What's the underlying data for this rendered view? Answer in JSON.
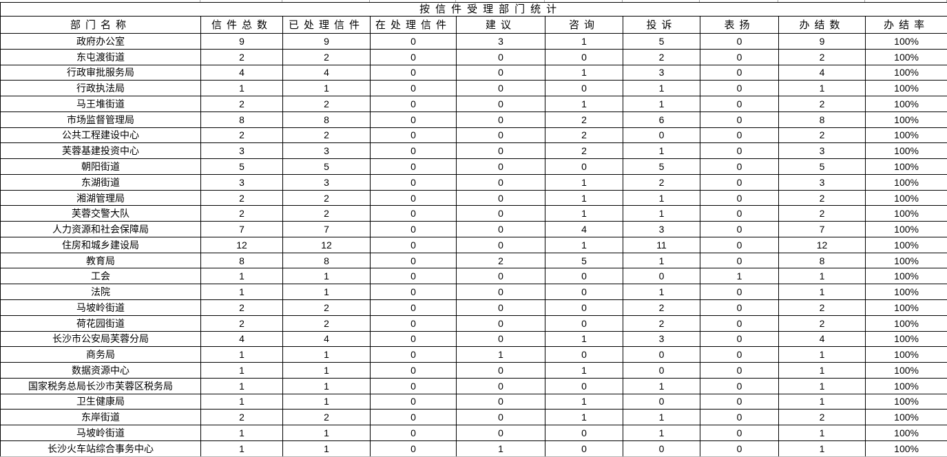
{
  "colors": {
    "background": "#ffffff",
    "text": "#000000",
    "cell_border": "#000000",
    "cropped_gridline": "#a6a6a6",
    "bottom_gridline": "#b3b3b3"
  },
  "chart_data": {
    "type": "table",
    "title": "按信件受理部门统计",
    "columns": [
      "部门名称",
      "信件总数",
      "已处理信件",
      "在处理信件",
      "建议",
      "咨询",
      "投诉",
      "表扬",
      "办结数",
      "办结率"
    ],
    "rows": [
      [
        "政府办公室",
        9,
        9,
        0,
        3,
        1,
        5,
        0,
        9,
        "100%"
      ],
      [
        "东屯渡街道",
        2,
        2,
        0,
        0,
        0,
        2,
        0,
        2,
        "100%"
      ],
      [
        "行政审批服务局",
        4,
        4,
        0,
        0,
        1,
        3,
        0,
        4,
        "100%"
      ],
      [
        "行政执法局",
        1,
        1,
        0,
        0,
        0,
        1,
        0,
        1,
        "100%"
      ],
      [
        "马王堆街道",
        2,
        2,
        0,
        0,
        1,
        1,
        0,
        2,
        "100%"
      ],
      [
        "市场监督管理局",
        8,
        8,
        0,
        0,
        2,
        6,
        0,
        8,
        "100%"
      ],
      [
        "公共工程建设中心",
        2,
        2,
        0,
        0,
        2,
        0,
        0,
        2,
        "100%"
      ],
      [
        "芙蓉基建投资中心",
        3,
        3,
        0,
        0,
        2,
        1,
        0,
        3,
        "100%"
      ],
      [
        "朝阳街道",
        5,
        5,
        0,
        0,
        0,
        5,
        0,
        5,
        "100%"
      ],
      [
        "东湖街道",
        3,
        3,
        0,
        0,
        1,
        2,
        0,
        3,
        "100%"
      ],
      [
        "湘湖管理局",
        2,
        2,
        0,
        0,
        1,
        1,
        0,
        2,
        "100%"
      ],
      [
        "芙蓉交警大队",
        2,
        2,
        0,
        0,
        1,
        1,
        0,
        2,
        "100%"
      ],
      [
        "人力资源和社会保障局",
        7,
        7,
        0,
        0,
        4,
        3,
        0,
        7,
        "100%"
      ],
      [
        "住房和城乡建设局",
        12,
        12,
        0,
        0,
        1,
        11,
        0,
        12,
        "100%"
      ],
      [
        "教育局",
        8,
        8,
        0,
        2,
        5,
        1,
        0,
        8,
        "100%"
      ],
      [
        "工会",
        1,
        1,
        0,
        0,
        0,
        0,
        1,
        1,
        "100%"
      ],
      [
        "法院",
        1,
        1,
        0,
        0,
        0,
        1,
        0,
        1,
        "100%"
      ],
      [
        "马坡岭街道",
        2,
        2,
        0,
        0,
        0,
        2,
        0,
        2,
        "100%"
      ],
      [
        "荷花园街道",
        2,
        2,
        0,
        0,
        0,
        2,
        0,
        2,
        "100%"
      ],
      [
        "长沙市公安局芙蓉分局",
        4,
        4,
        0,
        0,
        1,
        3,
        0,
        4,
        "100%"
      ],
      [
        "商务局",
        1,
        1,
        0,
        1,
        0,
        0,
        0,
        1,
        "100%"
      ],
      [
        "数据资源中心",
        1,
        1,
        0,
        0,
        1,
        0,
        0,
        1,
        "100%"
      ],
      [
        "国家税务总局长沙市芙蓉区税务局",
        1,
        1,
        0,
        0,
        0,
        1,
        0,
        1,
        "100%"
      ],
      [
        "卫生健康局",
        1,
        1,
        0,
        0,
        1,
        0,
        0,
        1,
        "100%"
      ],
      [
        "东岸街道",
        2,
        2,
        0,
        0,
        1,
        1,
        0,
        2,
        "100%"
      ],
      [
        "马坡岭街道",
        1,
        1,
        0,
        0,
        0,
        1,
        0,
        1,
        "100%"
      ],
      [
        "长沙火车站综合事务中心",
        1,
        1,
        0,
        1,
        0,
        0,
        0,
        1,
        "100%"
      ]
    ]
  }
}
